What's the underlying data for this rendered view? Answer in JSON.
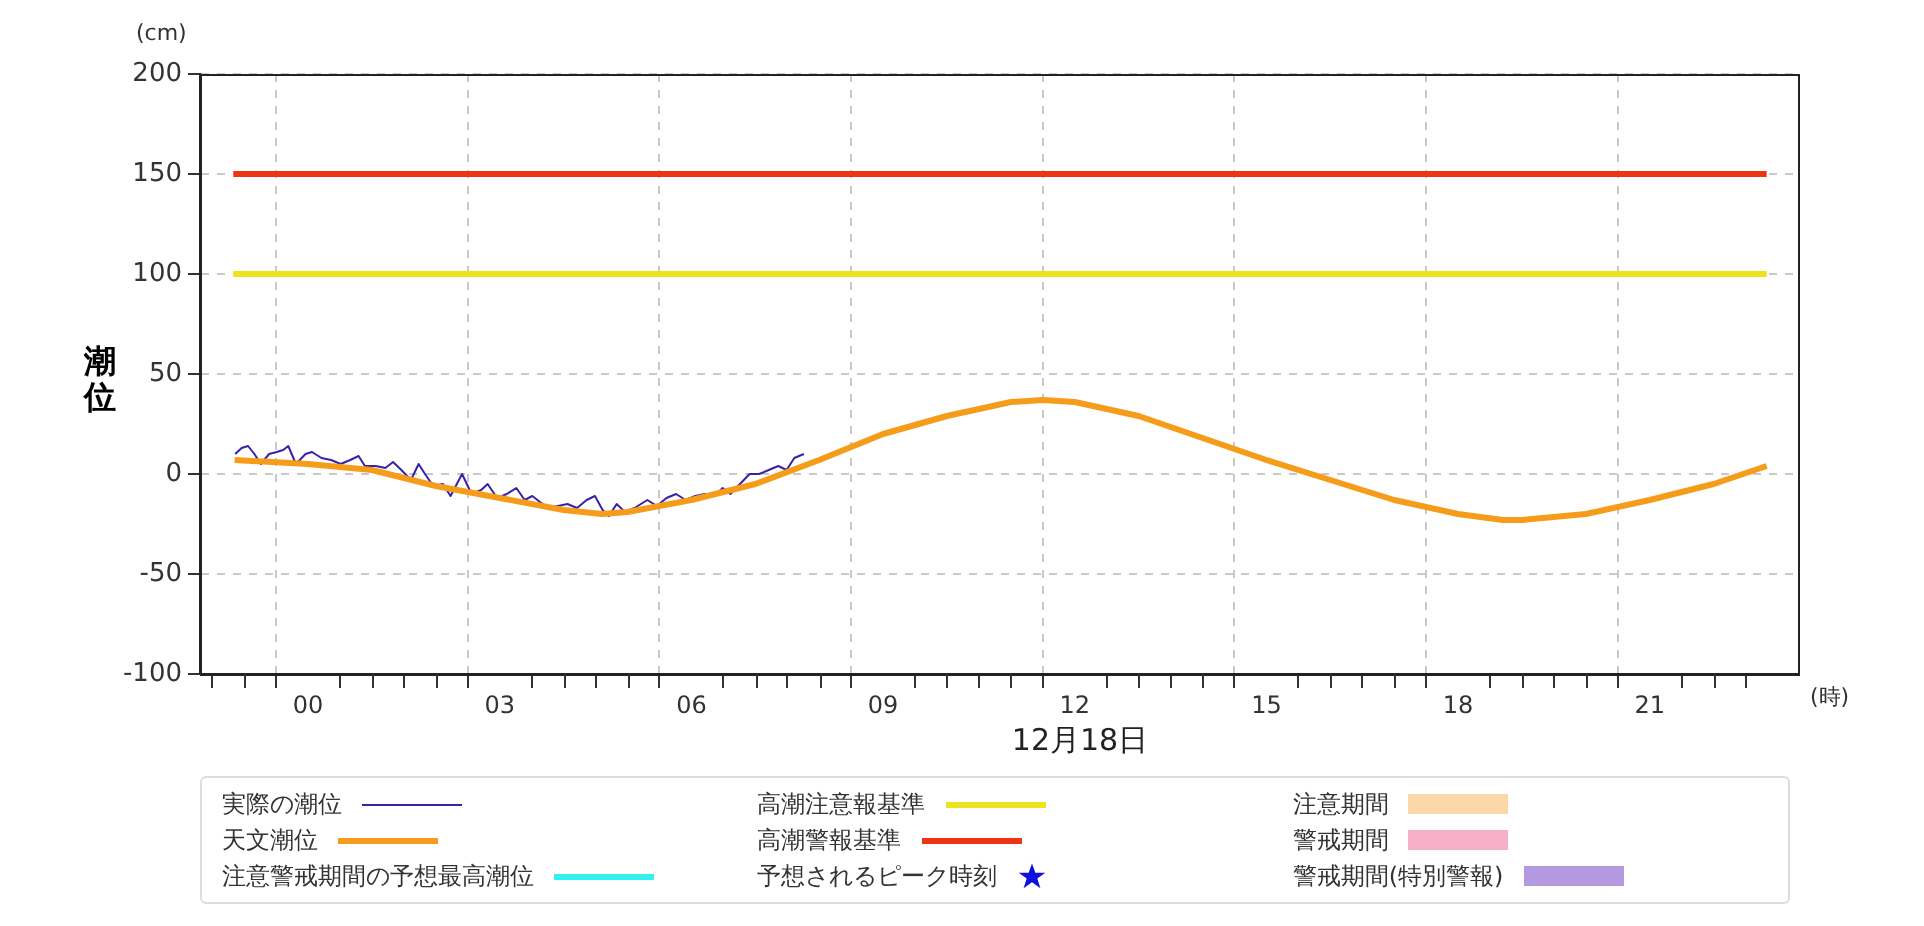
{
  "chart_data": {
    "type": "line",
    "ylabel": "潮位",
    "xlabel": "12月18日",
    "annotations": [
      "(cm)",
      "(時)"
    ],
    "xlim": [
      -1.17,
      22.83
    ],
    "xticks": [
      {
        "value": -1,
        "label": null
      },
      {
        "value": 0,
        "label": "00"
      },
      {
        "value": 1,
        "label": null
      },
      {
        "value": 2,
        "label": null
      },
      {
        "value": 3,
        "label": "03"
      },
      {
        "value": 4,
        "label": null
      },
      {
        "value": 5,
        "label": null
      },
      {
        "value": 6,
        "label": "06"
      },
      {
        "value": 7,
        "label": null
      },
      {
        "value": 8,
        "label": null
      },
      {
        "value": 9,
        "label": "09"
      },
      {
        "value": 10,
        "label": null
      },
      {
        "value": 11,
        "label": null
      },
      {
        "value": 12,
        "label": "12"
      },
      {
        "value": 13,
        "label": null
      },
      {
        "value": 14,
        "label": null
      },
      {
        "value": 15,
        "label": "15"
      },
      {
        "value": 16,
        "label": null
      },
      {
        "value": 17,
        "label": null
      },
      {
        "value": 18,
        "label": "18"
      },
      {
        "value": 19,
        "label": null
      },
      {
        "value": 20,
        "label": null
      },
      {
        "value": 21,
        "label": "21"
      },
      {
        "value": 22,
        "label": null
      }
    ],
    "ylim": [
      -100,
      200
    ],
    "yticks": [
      -100,
      -50,
      0,
      50,
      100,
      150,
      200
    ],
    "grid": true,
    "legend": "bottom",
    "line_style": "solid",
    "marker": "none",
    "series": [
      {
        "name": "実際の潮位",
        "color": "#3a22a8",
        "x": [
          -1.14,
          -1.04,
          -0.94,
          -0.84,
          -0.74,
          -0.61,
          -0.49,
          -0.39,
          -0.31,
          -0.19,
          -0.04,
          0.06,
          0.21,
          0.36,
          0.51,
          0.66,
          0.79,
          0.89,
          1.06,
          1.21,
          1.33,
          1.46,
          1.61,
          1.73,
          1.83,
          1.96,
          2.11,
          2.23,
          2.41,
          2.56,
          2.71,
          2.81,
          2.96,
          3.11,
          3.26,
          3.39,
          3.51,
          3.63,
          3.76,
          3.91,
          4.06,
          4.21,
          4.36,
          4.49,
          4.61,
          4.71,
          4.83,
          4.96,
          5.11,
          5.31,
          5.46,
          5.61,
          5.76,
          5.91,
          6.06,
          6.21,
          6.36,
          6.49,
          6.61,
          6.76,
          6.91,
          7.06,
          7.21,
          7.36,
          7.49,
          7.61,
          7.76
        ],
        "values": [
          10,
          13,
          14,
          10,
          5,
          10,
          11,
          12,
          14,
          5,
          10,
          11,
          8,
          7,
          5,
          7,
          9,
          4,
          4,
          3,
          6,
          2,
          -3,
          5,
          0,
          -6,
          -5,
          -11,
          0,
          -10,
          -8,
          -5,
          -12,
          -10,
          -7,
          -13,
          -11,
          -14,
          -17,
          -16,
          -15,
          -17,
          -13,
          -11,
          -18,
          -21,
          -15,
          -19,
          -17,
          -13,
          -16,
          -12,
          -10,
          -13,
          -11,
          -10,
          -11,
          -7,
          -10,
          -5,
          0,
          0,
          2,
          4,
          2,
          8,
          10
        ]
      },
      {
        "name": "天文潮位",
        "color": "#f59c1a",
        "x": [
          -1.15,
          0,
          1,
          2,
          3,
          4,
          4.6,
          5,
          6,
          7,
          8,
          9,
          10,
          11,
          11.5,
          12,
          13,
          14,
          15,
          16,
          17,
          18,
          18.7,
          19,
          20,
          21,
          22,
          22.83
        ],
        "values": [
          7,
          5,
          2,
          -6,
          -12,
          -18,
          -20,
          -19,
          -13,
          -5,
          7,
          20,
          29,
          36,
          37,
          36,
          29,
          18,
          7,
          -3,
          -13,
          -20,
          -23,
          -23,
          -20,
          -13,
          -5,
          4
        ]
      },
      {
        "name": "注意警戒期間の予想最高潮位",
        "color": "#33f0f0"
      },
      {
        "name": "高潮注意報基準",
        "color": "#ece31c",
        "x": [
          -1.17,
          22.83
        ],
        "values": [
          100,
          100
        ]
      },
      {
        "name": "高潮警報基準",
        "color": "#ef3416",
        "x": [
          -1.17,
          22.83
        ],
        "values": [
          150,
          150
        ]
      },
      {
        "name": "予想されるピーク時刻",
        "type": "scatter",
        "marker": "star",
        "color": "#1111dd"
      },
      {
        "name": "注意期間",
        "type": "bar",
        "color": "#fcd8a8"
      },
      {
        "name": "警戒期間",
        "type": "bar",
        "color": "#f8b0c8"
      },
      {
        "name": "警戒期間(特別警報)",
        "type": "bar",
        "color": "#b39ae0"
      }
    ]
  }
}
